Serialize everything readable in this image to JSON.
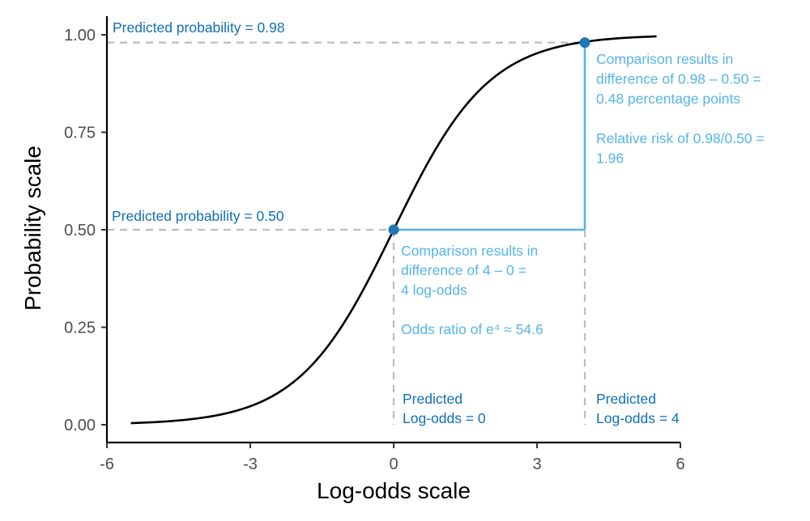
{
  "colors": {
    "curve": "#000000",
    "guide": "#bdbdbd",
    "point": "#1f77b4",
    "dark_annotation": "#0f6fb8",
    "light_annotation": "#56b4e9",
    "axis": "#000000",
    "tick_label": "#4d4d4d"
  },
  "chart_data": {
    "type": "line",
    "title": "",
    "xlabel": "Log-odds scale",
    "ylabel": "Probability scale",
    "xlim": [
      -6,
      6
    ],
    "ylim": [
      0,
      1
    ],
    "x_ticks": [
      {
        "value": -6,
        "label": "-6"
      },
      {
        "value": -3,
        "label": "-3"
      },
      {
        "value": 0,
        "label": "0"
      },
      {
        "value": 3,
        "label": "3"
      },
      {
        "value": 6,
        "label": "6"
      }
    ],
    "y_ticks": [
      {
        "value": 0,
        "label": "0.00"
      },
      {
        "value": 0.25,
        "label": "0.25"
      },
      {
        "value": 0.5,
        "label": "0.50"
      },
      {
        "value": 0.75,
        "label": "0.75"
      },
      {
        "value": 1,
        "label": "1.00"
      }
    ],
    "grid": false,
    "series": [
      {
        "x": [
          -5.5,
          -5.0,
          -4.5,
          -4.0,
          -3.5,
          -3.0,
          -2.5,
          -2.0,
          -1.5,
          -1.0,
          -0.5,
          0.0,
          0.5,
          1.0,
          1.5,
          2.0,
          2.5,
          3.0,
          3.5,
          4.0,
          4.5,
          5.0,
          5.5
        ],
        "y": [
          0.004,
          0.007,
          0.011,
          0.018,
          0.029,
          0.047,
          0.076,
          0.119,
          0.182,
          0.269,
          0.378,
          0.5,
          0.622,
          0.731,
          0.818,
          0.881,
          0.924,
          0.953,
          0.971,
          0.982,
          0.989,
          0.993,
          0.996
        ]
      }
    ],
    "points": [
      {
        "x": 0,
        "y": 0.5
      },
      {
        "x": 4,
        "y": 0.98
      }
    ],
    "annotations": {
      "prob_high": "Predicted probability = 0.98",
      "prob_mid": "Predicted probability = 0.50",
      "prob_comparison": [
        "Comparison results in",
        "difference of 0.98 – 0.50 =",
        "0.48 percentage points",
        "",
        "Relative risk of 0.98/0.50 =",
        "1.96"
      ],
      "logodds_comparison": [
        "Comparison results in",
        "difference of 4 – 0 =",
        "4 log-odds",
        "",
        "Odds ratio of e⁴ ≈ 54.6"
      ],
      "logodds_0": [
        "Predicted",
        "Log-odds = 0"
      ],
      "logodds_4": [
        "Predicted",
        "Log-odds = 4"
      ]
    }
  }
}
